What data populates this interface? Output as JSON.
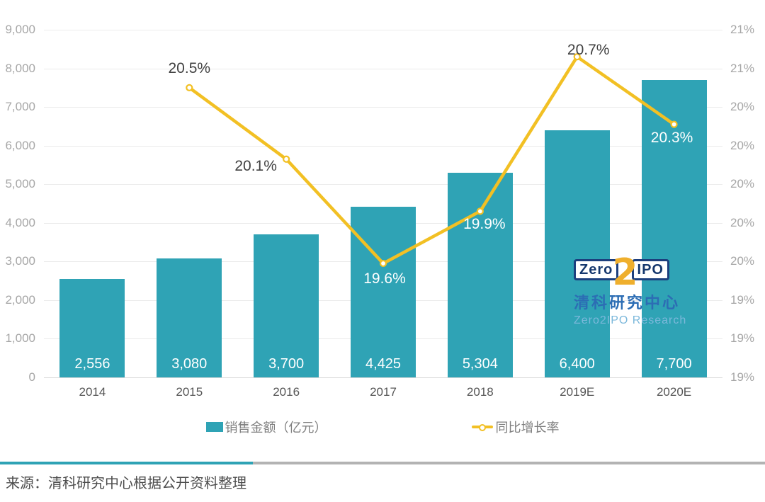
{
  "chart_data": {
    "type": "bar",
    "subtype": "bar+line combo",
    "categories": [
      "2014",
      "2015",
      "2016",
      "2017",
      "2018",
      "2019E",
      "2020E"
    ],
    "series": [
      {
        "name": "销售金额（亿元）",
        "type": "bar",
        "values": [
          2556,
          3080,
          3700,
          4425,
          5304,
          6400,
          7700
        ],
        "labels": [
          "2,556",
          "3,080",
          "3,700",
          "4,425",
          "5,304",
          "6,400",
          "7,700"
        ],
        "color": "#2FA3B5",
        "label_color": "#ffffff"
      },
      {
        "name": "同比增长率",
        "type": "line",
        "values": [
          null,
          20.5,
          20.13,
          19.59,
          19.86,
          20.66,
          20.31
        ],
        "labels": [
          null,
          "20.5%",
          "20.1%",
          "19.6%",
          "19.9%",
          "20.7%",
          "20.3%"
        ],
        "color": "#F2C024",
        "marker": "circle-open",
        "marker_fill": "#ffffff",
        "label_styles": [
          null,
          {
            "dx": 0,
            "dy": -27,
            "tone": "dark"
          },
          {
            "dx": -43,
            "dy": 10,
            "tone": "dark"
          },
          {
            "dx": 2,
            "dy": 22,
            "tone": "light"
          },
          {
            "dx": 6,
            "dy": 19,
            "tone": "light"
          },
          {
            "dx": 16,
            "dy": -9,
            "tone": "dark"
          },
          {
            "dx": -3,
            "dy": 19,
            "tone": "light"
          }
        ]
      }
    ],
    "left_axis": {
      "min": 0,
      "max": 9000,
      "tick_labels": [
        "9,000",
        "8,000",
        "7,000",
        "6,000",
        "5,000",
        "4,000",
        "3,000",
        "2,000",
        "1,000",
        "0"
      ]
    },
    "right_axis": {
      "min": 19.0,
      "max": 20.8,
      "tick_labels": [
        "21%",
        "21%",
        "20%",
        "20%",
        "20%",
        "20%",
        "20%",
        "19%",
        "19%",
        "19%"
      ]
    },
    "grid": true,
    "legend_position": "bottom",
    "title": ""
  },
  "legend": {
    "bar_label": "销售金额（亿元）",
    "line_label": "同比增长率"
  },
  "watermark": {
    "zero": "Zero",
    "two": "2",
    "ipo": "IPO",
    "cn": "清科研究中心",
    "en": "Zero2IPO Research"
  },
  "footer": {
    "source": "来源：清科研究中心根据公开资料整理"
  },
  "colors": {
    "bar": "#2FA3B5",
    "line": "#F2C024",
    "dark_label": "#404040",
    "light_label": "#ffffff",
    "axis_tick": "#a6a6a6",
    "x_tick": "#555555",
    "legend_text": "#7f7f7f",
    "divider_teal": "#2FA3B5",
    "divider_gray": "#b3b3b3",
    "logo_navy": "#1C3F7D",
    "logo_yellow": "#EFAF2D",
    "logo_blue": "#2C6DB4",
    "logo_lightblue": "#7CB8DB",
    "gridline": "#ebebeb"
  }
}
